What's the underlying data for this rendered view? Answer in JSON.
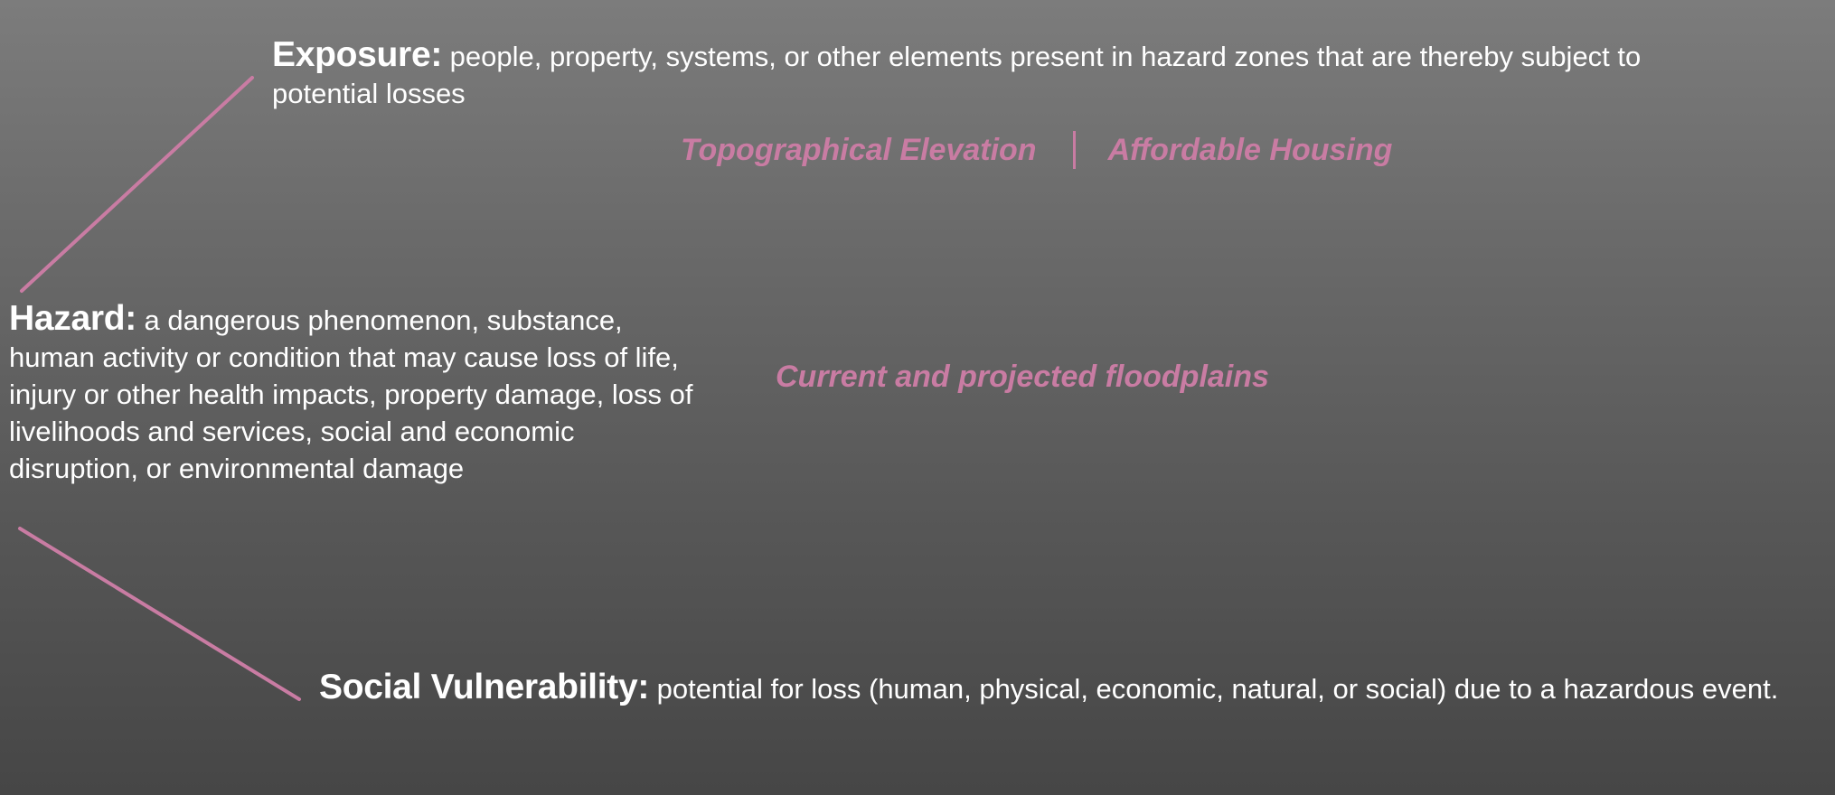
{
  "colors": {
    "accent": "#c97ca3",
    "text": "#ffffff",
    "background_top": "#7c7c7c",
    "background_bottom": "#464646"
  },
  "exposure": {
    "term": "Exposure:",
    "definition": " people, property, systems, or other elements present in hazard zones that are thereby subject to potential losses",
    "indicators": [
      "Topographical Elevation",
      "Affordable Housing"
    ]
  },
  "hazard": {
    "term": "Hazard:",
    "definition": " a dangerous phenomenon, substance, human activity or condition that may cause loss of life, injury or other health impacts, property damage, loss of livelihoods and services, social and economic disruption, or environmental damage",
    "indicator": "Current and projected floodplains"
  },
  "social_vulnerability": {
    "term": "Social Vulnerability:",
    "definition": " potential for loss (human, physical, economic, natural, or social) due to a hazardous event."
  }
}
